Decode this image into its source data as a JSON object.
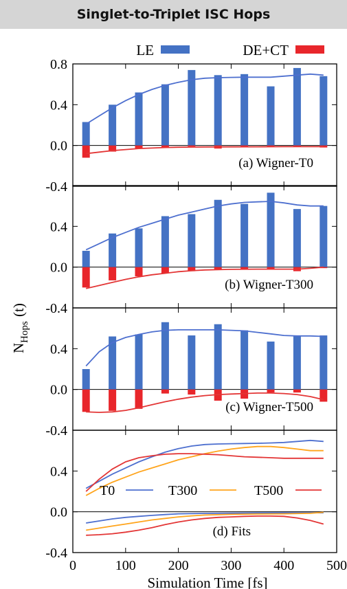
{
  "title": "Singlet-to-Triplet ISC Hops",
  "colors": {
    "le": "#4472c4",
    "dect": "#e8262b",
    "t0": "#4d6fcf",
    "t300": "#ffa41b",
    "t500": "#e33535",
    "axis": "#000000"
  },
  "legend": {
    "le": "LE",
    "dect": "DE+CT"
  },
  "chart_data": {
    "type": "bar",
    "xlabel": "Simulation Time [fs]",
    "ylabel_main": "N",
    "ylabel_sub": "Hops",
    "ylabel_tail": "(t)",
    "xlim": [
      0,
      500
    ],
    "xticks": [
      "0",
      "100",
      "200",
      "300",
      "400",
      "500"
    ],
    "ylim": [
      -0.4,
      0.8
    ],
    "yticks": [
      "-0.4",
      "0.0",
      "0.4",
      "0.8"
    ],
    "x": [
      25,
      75,
      125,
      175,
      225,
      275,
      325,
      375,
      425,
      475
    ],
    "panels": [
      {
        "label": "(a) Wigner-T0",
        "le": [
          0.23,
          0.4,
          0.52,
          0.6,
          0.74,
          0.69,
          0.7,
          0.58,
          0.76,
          0.68
        ],
        "dect": [
          -0.12,
          -0.06,
          -0.03,
          -0.02,
          -0.01,
          -0.03,
          -0.01,
          -0.01,
          -0.01,
          -0.02
        ],
        "le_fit": [
          [
            25,
            0.21
          ],
          [
            50,
            0.29
          ],
          [
            75,
            0.37
          ],
          [
            100,
            0.44
          ],
          [
            125,
            0.5
          ],
          [
            150,
            0.55
          ],
          [
            175,
            0.59
          ],
          [
            200,
            0.62
          ],
          [
            225,
            0.645
          ],
          [
            250,
            0.66
          ],
          [
            275,
            0.665
          ],
          [
            300,
            0.668
          ],
          [
            325,
            0.67
          ],
          [
            350,
            0.67
          ],
          [
            375,
            0.67
          ],
          [
            400,
            0.68
          ],
          [
            425,
            0.69
          ],
          [
            450,
            0.7
          ],
          [
            475,
            0.69
          ]
        ],
        "dect_fit": [
          [
            25,
            -0.08
          ],
          [
            50,
            -0.065
          ],
          [
            75,
            -0.05
          ],
          [
            100,
            -0.04
          ],
          [
            125,
            -0.03
          ],
          [
            150,
            -0.025
          ],
          [
            175,
            -0.02
          ],
          [
            200,
            -0.017
          ],
          [
            250,
            -0.015
          ],
          [
            300,
            -0.014
          ],
          [
            350,
            -0.013
          ],
          [
            400,
            -0.012
          ],
          [
            475,
            -0.012
          ]
        ]
      },
      {
        "label": "(b) Wigner-T300",
        "le": [
          0.16,
          0.33,
          0.38,
          0.5,
          0.52,
          0.66,
          0.62,
          0.73,
          0.57,
          0.6
        ],
        "dect": [
          -0.2,
          -0.13,
          -0.09,
          -0.06,
          -0.04,
          -0.02,
          -0.02,
          -0.02,
          -0.04,
          -0.01
        ],
        "le_fit": [
          [
            25,
            0.17
          ],
          [
            50,
            0.23
          ],
          [
            75,
            0.29
          ],
          [
            100,
            0.34
          ],
          [
            125,
            0.39
          ],
          [
            150,
            0.43
          ],
          [
            175,
            0.47
          ],
          [
            200,
            0.51
          ],
          [
            225,
            0.54
          ],
          [
            250,
            0.57
          ],
          [
            275,
            0.6
          ],
          [
            300,
            0.62
          ],
          [
            325,
            0.635
          ],
          [
            350,
            0.64
          ],
          [
            375,
            0.645
          ],
          [
            400,
            0.63
          ],
          [
            425,
            0.61
          ],
          [
            450,
            0.6
          ],
          [
            475,
            0.6
          ]
        ],
        "dect_fit": [
          [
            25,
            -0.21
          ],
          [
            50,
            -0.18
          ],
          [
            75,
            -0.15
          ],
          [
            100,
            -0.12
          ],
          [
            125,
            -0.095
          ],
          [
            150,
            -0.075
          ],
          [
            175,
            -0.06
          ],
          [
            200,
            -0.045
          ],
          [
            225,
            -0.035
          ],
          [
            250,
            -0.028
          ],
          [
            300,
            -0.022
          ],
          [
            350,
            -0.02
          ],
          [
            400,
            -0.02
          ],
          [
            425,
            -0.02
          ],
          [
            450,
            -0.012
          ],
          [
            475,
            0.0
          ]
        ]
      },
      {
        "label": "(c) Wigner-T500",
        "le": [
          0.2,
          0.52,
          0.54,
          0.66,
          0.53,
          0.64,
          0.58,
          0.47,
          0.52,
          0.53
        ],
        "dect": [
          -0.22,
          -0.21,
          -0.19,
          -0.04,
          -0.05,
          -0.11,
          -0.09,
          -0.03,
          -0.03,
          -0.12
        ],
        "le_fit": [
          [
            25,
            0.23
          ],
          [
            50,
            0.37
          ],
          [
            75,
            0.46
          ],
          [
            100,
            0.51
          ],
          [
            125,
            0.54
          ],
          [
            150,
            0.565
          ],
          [
            175,
            0.58
          ],
          [
            200,
            0.585
          ],
          [
            225,
            0.585
          ],
          [
            250,
            0.585
          ],
          [
            275,
            0.585
          ],
          [
            300,
            0.58
          ],
          [
            325,
            0.575
          ],
          [
            350,
            0.56
          ],
          [
            375,
            0.545
          ],
          [
            400,
            0.53
          ],
          [
            425,
            0.525
          ],
          [
            450,
            0.525
          ],
          [
            475,
            0.52
          ]
        ],
        "dect_fit": [
          [
            25,
            -0.22
          ],
          [
            50,
            -0.225
          ],
          [
            75,
            -0.22
          ],
          [
            100,
            -0.205
          ],
          [
            125,
            -0.18
          ],
          [
            150,
            -0.15
          ],
          [
            175,
            -0.12
          ],
          [
            200,
            -0.095
          ],
          [
            225,
            -0.075
          ],
          [
            250,
            -0.06
          ],
          [
            275,
            -0.05
          ],
          [
            300,
            -0.045
          ],
          [
            325,
            -0.04
          ],
          [
            350,
            -0.035
          ],
          [
            375,
            -0.035
          ],
          [
            400,
            -0.04
          ],
          [
            425,
            -0.05
          ],
          [
            450,
            -0.07
          ],
          [
            475,
            -0.1
          ]
        ]
      }
    ],
    "fits": {
      "label": "(d) Fits",
      "legend": [
        "T0",
        "T300",
        "T500"
      ],
      "t0_upper": [
        [
          25,
          0.23
        ],
        [
          50,
          0.3
        ],
        [
          75,
          0.37
        ],
        [
          100,
          0.43
        ],
        [
          125,
          0.49
        ],
        [
          150,
          0.54
        ],
        [
          175,
          0.585
        ],
        [
          200,
          0.62
        ],
        [
          225,
          0.645
        ],
        [
          250,
          0.66
        ],
        [
          275,
          0.665
        ],
        [
          300,
          0.668
        ],
        [
          325,
          0.67
        ],
        [
          350,
          0.672
        ],
        [
          375,
          0.675
        ],
        [
          400,
          0.68
        ],
        [
          425,
          0.69
        ],
        [
          450,
          0.7
        ],
        [
          475,
          0.69
        ]
      ],
      "t300_upper": [
        [
          25,
          0.16
        ],
        [
          50,
          0.23
        ],
        [
          75,
          0.29
        ],
        [
          100,
          0.34
        ],
        [
          125,
          0.39
        ],
        [
          150,
          0.43
        ],
        [
          175,
          0.47
        ],
        [
          200,
          0.51
        ],
        [
          225,
          0.54
        ],
        [
          250,
          0.57
        ],
        [
          275,
          0.595
        ],
        [
          300,
          0.615
        ],
        [
          325,
          0.63
        ],
        [
          350,
          0.64
        ],
        [
          375,
          0.64
        ],
        [
          400,
          0.63
        ],
        [
          425,
          0.615
        ],
        [
          450,
          0.6
        ],
        [
          475,
          0.6
        ]
      ],
      "t500_upper": [
        [
          25,
          0.2
        ],
        [
          50,
          0.32
        ],
        [
          75,
          0.42
        ],
        [
          100,
          0.49
        ],
        [
          125,
          0.53
        ],
        [
          150,
          0.55
        ],
        [
          175,
          0.565
        ],
        [
          200,
          0.57
        ],
        [
          225,
          0.57
        ],
        [
          250,
          0.565
        ],
        [
          275,
          0.56
        ],
        [
          300,
          0.55
        ],
        [
          325,
          0.54
        ],
        [
          350,
          0.535
        ],
        [
          375,
          0.53
        ],
        [
          400,
          0.525
        ],
        [
          425,
          0.525
        ],
        [
          450,
          0.525
        ],
        [
          475,
          0.525
        ]
      ],
      "t0_lower": [
        [
          25,
          -0.11
        ],
        [
          50,
          -0.09
        ],
        [
          75,
          -0.07
        ],
        [
          100,
          -0.055
        ],
        [
          125,
          -0.045
        ],
        [
          150,
          -0.035
        ],
        [
          175,
          -0.027
        ],
        [
          200,
          -0.02
        ],
        [
          250,
          -0.016
        ],
        [
          300,
          -0.014
        ],
        [
          350,
          -0.012
        ],
        [
          400,
          -0.01
        ],
        [
          475,
          -0.01
        ]
      ],
      "t300_lower": [
        [
          25,
          -0.18
        ],
        [
          50,
          -0.16
        ],
        [
          75,
          -0.14
        ],
        [
          100,
          -0.12
        ],
        [
          125,
          -0.1
        ],
        [
          150,
          -0.08
        ],
        [
          175,
          -0.065
        ],
        [
          200,
          -0.05
        ],
        [
          225,
          -0.04
        ],
        [
          250,
          -0.032
        ],
        [
          300,
          -0.025
        ],
        [
          350,
          -0.022
        ],
        [
          400,
          -0.02
        ],
        [
          450,
          -0.015
        ],
        [
          475,
          -0.005
        ]
      ],
      "t500_lower": [
        [
          25,
          -0.23
        ],
        [
          50,
          -0.225
        ],
        [
          75,
          -0.215
        ],
        [
          100,
          -0.2
        ],
        [
          125,
          -0.18
        ],
        [
          150,
          -0.155
        ],
        [
          175,
          -0.125
        ],
        [
          200,
          -0.1
        ],
        [
          225,
          -0.08
        ],
        [
          250,
          -0.065
        ],
        [
          275,
          -0.055
        ],
        [
          300,
          -0.05
        ],
        [
          325,
          -0.045
        ],
        [
          350,
          -0.042
        ],
        [
          375,
          -0.042
        ],
        [
          400,
          -0.045
        ],
        [
          425,
          -0.06
        ],
        [
          450,
          -0.085
        ],
        [
          475,
          -0.12
        ]
      ]
    }
  }
}
